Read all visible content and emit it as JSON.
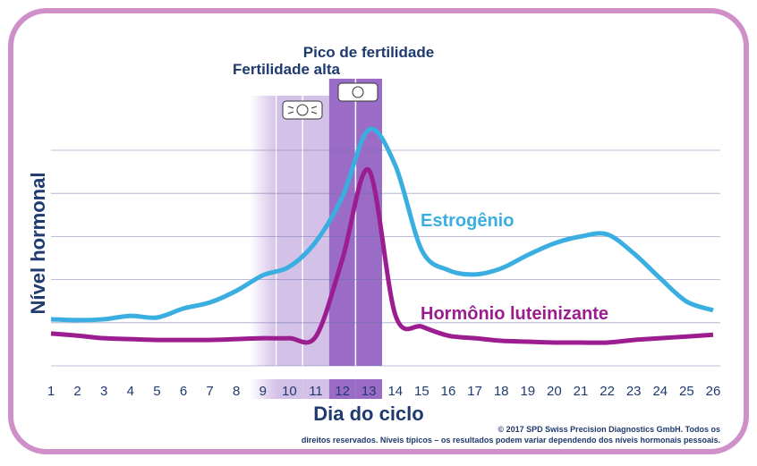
{
  "chart_data": {
    "type": "line",
    "xlabel": "Dia do ciclo",
    "ylabel": "Nível hormonal",
    "x": [
      1,
      2,
      3,
      4,
      5,
      6,
      7,
      8,
      9,
      10,
      11,
      12,
      13,
      14,
      15,
      16,
      17,
      18,
      19,
      20,
      21,
      22,
      23,
      24,
      25,
      26
    ],
    "ylim": [
      0,
      5
    ],
    "grid": true,
    "series": [
      {
        "name": "Estrogênio",
        "color": "#3aaee0",
        "values": [
          1.08,
          1.06,
          1.08,
          1.16,
          1.12,
          1.33,
          1.47,
          1.74,
          2.1,
          2.3,
          2.88,
          3.92,
          5.48,
          4.65,
          2.68,
          2.22,
          2.12,
          2.26,
          2.57,
          2.84,
          3.0,
          3.05,
          2.61,
          2.03,
          1.49,
          1.29
        ]
      },
      {
        "name": "Hormônio luteinizante",
        "color": "#9b1d8f",
        "values": [
          0.75,
          0.7,
          0.64,
          0.62,
          0.6,
          0.6,
          0.6,
          0.62,
          0.64,
          0.64,
          0.68,
          2.47,
          4.54,
          1.18,
          0.91,
          0.7,
          0.64,
          0.58,
          0.56,
          0.54,
          0.54,
          0.54,
          0.6,
          0.64,
          0.68,
          0.72
        ]
      }
    ],
    "annotations": [
      {
        "label": "Fertilidade alta",
        "days": [
          9,
          10,
          11
        ],
        "icon": "smiley-flashing-icon",
        "color": "#d4c1e8"
      },
      {
        "label": "Pico de fertilidade",
        "days": [
          12,
          13
        ],
        "icon": "smiley-static-icon",
        "color": "#9a6cc6"
      }
    ]
  },
  "copyright": [
    "© 2017 SPD Swiss Precision Diagnostics GmbH. Todos os",
    "direitos reservados. Níveis típicos – os resultados podem variar dependendo dos níveis hormonais pessoais."
  ],
  "colors": {
    "frame": "#cf8fc8",
    "text": "#1f3a6e"
  }
}
